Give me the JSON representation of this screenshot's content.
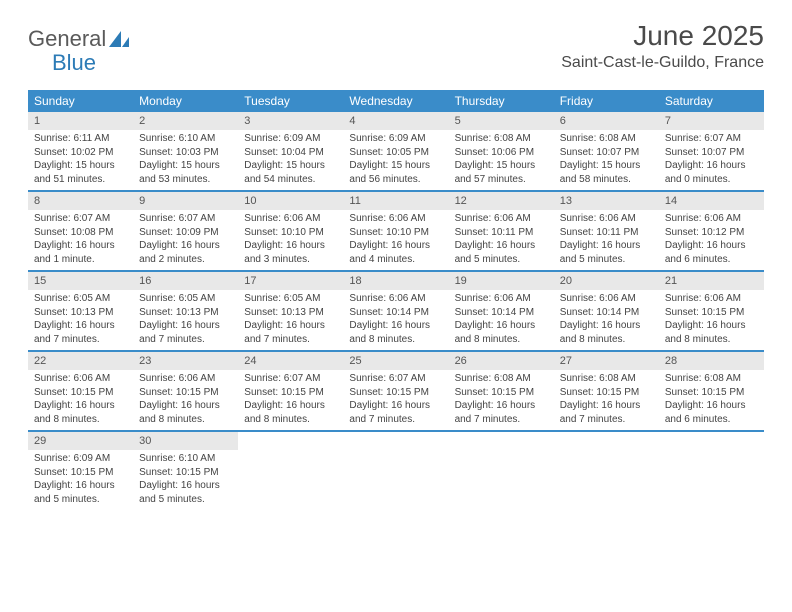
{
  "brand": {
    "part1": "General",
    "part2": "Blue"
  },
  "title": "June 2025",
  "location": "Saint-Cast-le-Guildo, France",
  "colors": {
    "header_bar": "#3a8cc9",
    "daynum_bg": "#e8e8e8",
    "text": "#4a4a4a",
    "brand_gray": "#5a5a5a",
    "brand_blue": "#2c7bb6"
  },
  "weekdays": [
    "Sunday",
    "Monday",
    "Tuesday",
    "Wednesday",
    "Thursday",
    "Friday",
    "Saturday"
  ],
  "weeks": [
    [
      {
        "n": "1",
        "sr": "Sunrise: 6:11 AM",
        "ss": "Sunset: 10:02 PM",
        "dl": "Daylight: 15 hours and 51 minutes."
      },
      {
        "n": "2",
        "sr": "Sunrise: 6:10 AM",
        "ss": "Sunset: 10:03 PM",
        "dl": "Daylight: 15 hours and 53 minutes."
      },
      {
        "n": "3",
        "sr": "Sunrise: 6:09 AM",
        "ss": "Sunset: 10:04 PM",
        "dl": "Daylight: 15 hours and 54 minutes."
      },
      {
        "n": "4",
        "sr": "Sunrise: 6:09 AM",
        "ss": "Sunset: 10:05 PM",
        "dl": "Daylight: 15 hours and 56 minutes."
      },
      {
        "n": "5",
        "sr": "Sunrise: 6:08 AM",
        "ss": "Sunset: 10:06 PM",
        "dl": "Daylight: 15 hours and 57 minutes."
      },
      {
        "n": "6",
        "sr": "Sunrise: 6:08 AM",
        "ss": "Sunset: 10:07 PM",
        "dl": "Daylight: 15 hours and 58 minutes."
      },
      {
        "n": "7",
        "sr": "Sunrise: 6:07 AM",
        "ss": "Sunset: 10:07 PM",
        "dl": "Daylight: 16 hours and 0 minutes."
      }
    ],
    [
      {
        "n": "8",
        "sr": "Sunrise: 6:07 AM",
        "ss": "Sunset: 10:08 PM",
        "dl": "Daylight: 16 hours and 1 minute."
      },
      {
        "n": "9",
        "sr": "Sunrise: 6:07 AM",
        "ss": "Sunset: 10:09 PM",
        "dl": "Daylight: 16 hours and 2 minutes."
      },
      {
        "n": "10",
        "sr": "Sunrise: 6:06 AM",
        "ss": "Sunset: 10:10 PM",
        "dl": "Daylight: 16 hours and 3 minutes."
      },
      {
        "n": "11",
        "sr": "Sunrise: 6:06 AM",
        "ss": "Sunset: 10:10 PM",
        "dl": "Daylight: 16 hours and 4 minutes."
      },
      {
        "n": "12",
        "sr": "Sunrise: 6:06 AM",
        "ss": "Sunset: 10:11 PM",
        "dl": "Daylight: 16 hours and 5 minutes."
      },
      {
        "n": "13",
        "sr": "Sunrise: 6:06 AM",
        "ss": "Sunset: 10:11 PM",
        "dl": "Daylight: 16 hours and 5 minutes."
      },
      {
        "n": "14",
        "sr": "Sunrise: 6:06 AM",
        "ss": "Sunset: 10:12 PM",
        "dl": "Daylight: 16 hours and 6 minutes."
      }
    ],
    [
      {
        "n": "15",
        "sr": "Sunrise: 6:05 AM",
        "ss": "Sunset: 10:13 PM",
        "dl": "Daylight: 16 hours and 7 minutes."
      },
      {
        "n": "16",
        "sr": "Sunrise: 6:05 AM",
        "ss": "Sunset: 10:13 PM",
        "dl": "Daylight: 16 hours and 7 minutes."
      },
      {
        "n": "17",
        "sr": "Sunrise: 6:05 AM",
        "ss": "Sunset: 10:13 PM",
        "dl": "Daylight: 16 hours and 7 minutes."
      },
      {
        "n": "18",
        "sr": "Sunrise: 6:06 AM",
        "ss": "Sunset: 10:14 PM",
        "dl": "Daylight: 16 hours and 8 minutes."
      },
      {
        "n": "19",
        "sr": "Sunrise: 6:06 AM",
        "ss": "Sunset: 10:14 PM",
        "dl": "Daylight: 16 hours and 8 minutes."
      },
      {
        "n": "20",
        "sr": "Sunrise: 6:06 AM",
        "ss": "Sunset: 10:14 PM",
        "dl": "Daylight: 16 hours and 8 minutes."
      },
      {
        "n": "21",
        "sr": "Sunrise: 6:06 AM",
        "ss": "Sunset: 10:15 PM",
        "dl": "Daylight: 16 hours and 8 minutes."
      }
    ],
    [
      {
        "n": "22",
        "sr": "Sunrise: 6:06 AM",
        "ss": "Sunset: 10:15 PM",
        "dl": "Daylight: 16 hours and 8 minutes."
      },
      {
        "n": "23",
        "sr": "Sunrise: 6:06 AM",
        "ss": "Sunset: 10:15 PM",
        "dl": "Daylight: 16 hours and 8 minutes."
      },
      {
        "n": "24",
        "sr": "Sunrise: 6:07 AM",
        "ss": "Sunset: 10:15 PM",
        "dl": "Daylight: 16 hours and 8 minutes."
      },
      {
        "n": "25",
        "sr": "Sunrise: 6:07 AM",
        "ss": "Sunset: 10:15 PM",
        "dl": "Daylight: 16 hours and 7 minutes."
      },
      {
        "n": "26",
        "sr": "Sunrise: 6:08 AM",
        "ss": "Sunset: 10:15 PM",
        "dl": "Daylight: 16 hours and 7 minutes."
      },
      {
        "n": "27",
        "sr": "Sunrise: 6:08 AM",
        "ss": "Sunset: 10:15 PM",
        "dl": "Daylight: 16 hours and 7 minutes."
      },
      {
        "n": "28",
        "sr": "Sunrise: 6:08 AM",
        "ss": "Sunset: 10:15 PM",
        "dl": "Daylight: 16 hours and 6 minutes."
      }
    ],
    [
      {
        "n": "29",
        "sr": "Sunrise: 6:09 AM",
        "ss": "Sunset: 10:15 PM",
        "dl": "Daylight: 16 hours and 5 minutes."
      },
      {
        "n": "30",
        "sr": "Sunrise: 6:10 AM",
        "ss": "Sunset: 10:15 PM",
        "dl": "Daylight: 16 hours and 5 minutes."
      },
      {
        "empty": true
      },
      {
        "empty": true
      },
      {
        "empty": true
      },
      {
        "empty": true
      },
      {
        "empty": true
      }
    ]
  ]
}
